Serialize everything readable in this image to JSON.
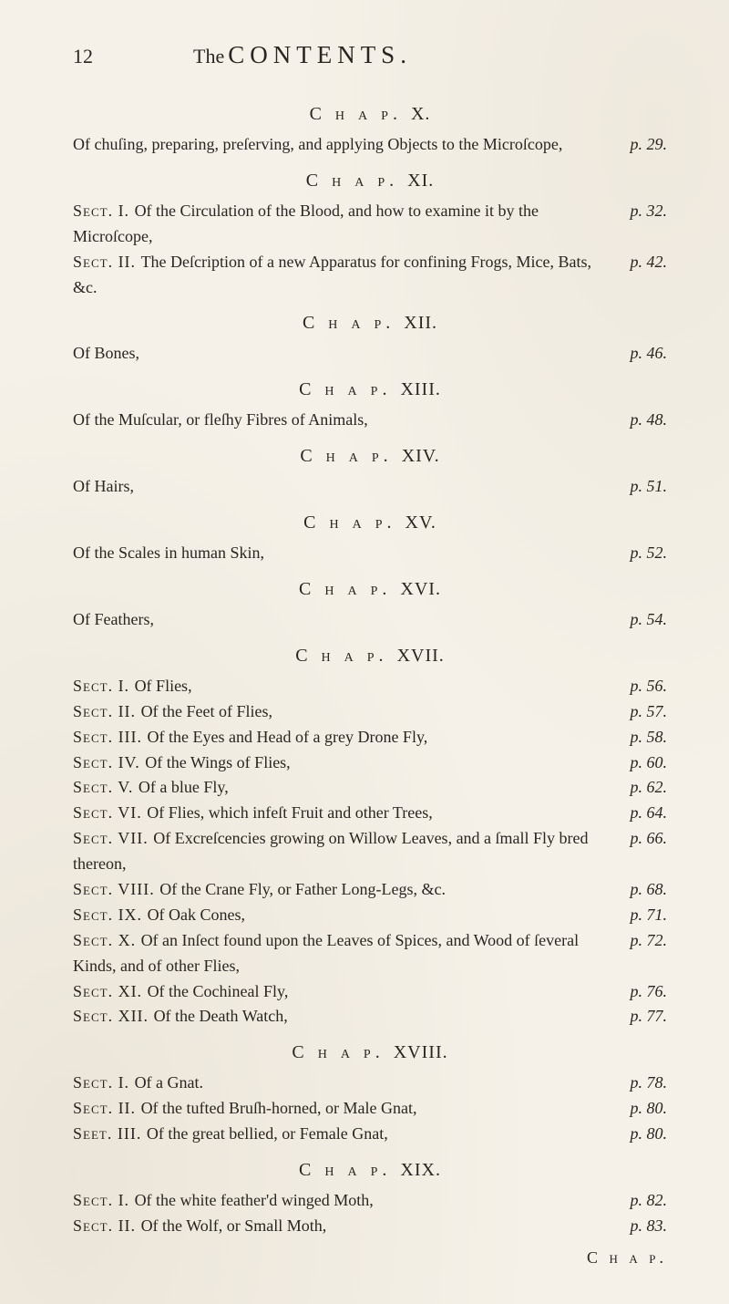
{
  "page": {
    "number": "12",
    "running_the": "The",
    "running_contents": "CONTENTS."
  },
  "colors": {
    "background": "#f5f1e8",
    "ink": "#2a2520",
    "ink_light": "#3a332c"
  },
  "typography": {
    "body_font": "Times New Roman",
    "body_size_pt": 18,
    "heading_size_pt": 20,
    "running_title_size_pt": 27,
    "page_num_size_pt": 22
  },
  "chapters": [
    {
      "label": "C h a p.",
      "roman": "X.",
      "entries": [
        {
          "text_parts": [
            "Of chuſing, preparing, preſerving, and applying Objects to the Microſcope,"
          ],
          "pageref": "p. 29."
        }
      ]
    },
    {
      "label": "C h a p.",
      "roman": "XI.",
      "entries": [
        {
          "sect": "Sect. I.",
          "text": "Of the Circulation of the Blood, and how to examine it by the Microſcope,",
          "pageref": "p. 32."
        },
        {
          "sect": "Sect. II.",
          "text": "The Deſcription of a new Apparatus for confining Frogs, Mice, Bats, &c.",
          "pageref": "p. 42."
        }
      ]
    },
    {
      "label": "C h a p.",
      "roman": "XII.",
      "entries": [
        {
          "text": "Of Bones,",
          "pageref": "p. 46."
        }
      ]
    },
    {
      "label": "C h a p.",
      "roman": "XIII.",
      "entries": [
        {
          "text": "Of the Muſcular, or fleſhy Fibres of Animals,",
          "pageref": "p. 48."
        }
      ]
    },
    {
      "label": "C h a p.",
      "roman": "XIV.",
      "entries": [
        {
          "text": "Of Hairs,",
          "pageref": "p. 51."
        }
      ]
    },
    {
      "label": "C h a p.",
      "roman": "XV.",
      "entries": [
        {
          "text": "Of the Scales in human Skin,",
          "pageref": "p. 52."
        }
      ]
    },
    {
      "label": "C h a p.",
      "roman": "XVI.",
      "entries": [
        {
          "text": "Of Feathers,",
          "pageref": "p. 54."
        }
      ]
    },
    {
      "label": "C h a p.",
      "roman": "XVII.",
      "entries": [
        {
          "sect": "Sect. I.",
          "text": "Of Flies,",
          "pageref": "p. 56."
        },
        {
          "sect": "Sect. II.",
          "text": "Of the Feet of Flies,",
          "pageref": "p. 57."
        },
        {
          "sect": "Sect. III.",
          "text": "Of the Eyes and Head of a grey Drone Fly,",
          "pageref": "p. 58."
        },
        {
          "sect": "Sect. IV.",
          "text": "Of the Wings of Flies,",
          "pageref": "p. 60."
        },
        {
          "sect": "Sect. V.",
          "text": "Of a blue Fly,",
          "pageref": "p. 62."
        },
        {
          "sect": "Sect. VI.",
          "text": "Of Flies, which infeſt Fruit and other Trees,",
          "pageref": "p. 64."
        },
        {
          "sect": "Sect. VII.",
          "text": "Of Excreſcencies growing on Willow Leaves, and a ſmall Fly bred thereon,",
          "pageref": "p. 66."
        },
        {
          "sect": "Sect. VIII.",
          "text": "Of the Crane Fly, or Father Long-Legs, &c.",
          "pageref": "p. 68."
        },
        {
          "sect": "Sect. IX.",
          "text": "Of Oak Cones,",
          "pageref": "p. 71."
        },
        {
          "sect": "Sect. X.",
          "text": "Of an Inſect found upon the Leaves of Spices, and Wood of ſeveral Kinds, and of other Flies,",
          "pageref": "p. 72."
        },
        {
          "sect": "Sect. XI.",
          "text": "Of the Cochineal Fly,",
          "pageref": "p. 76."
        },
        {
          "sect": "Sect. XII.",
          "text": "Of the Death Watch,",
          "pageref": "p. 77."
        }
      ]
    },
    {
      "label": "C h a p.",
      "roman": "XVIII.",
      "entries": [
        {
          "sect": "Sect. I.",
          "text": "Of a Gnat.",
          "pageref": "p. 78."
        },
        {
          "sect": "Sect. II.",
          "text": "Of the tufted Bruſh-horned, or Male Gnat,",
          "pageref": "p. 80."
        },
        {
          "sect": "Seet. III.",
          "text": "Of the great bellied, or Female Gnat,",
          "pageref": "p. 80."
        }
      ]
    },
    {
      "label": "C h a p.",
      "roman": "XIX.",
      "entries": [
        {
          "sect": "Sect. I.",
          "text": "Of the white feather'd winged Moth,",
          "pageref": "p. 82."
        },
        {
          "sect": "Sect. II.",
          "text": "Of the Wolf, or Small Moth,",
          "pageref": "p. 83."
        }
      ]
    }
  ],
  "catchword": "C h a p."
}
